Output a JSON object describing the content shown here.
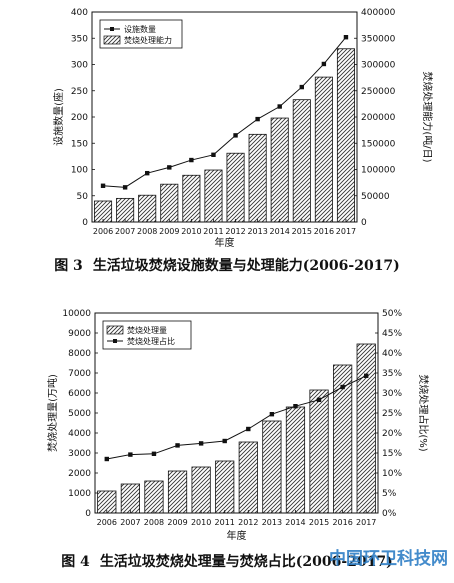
{
  "figures": [
    {
      "caption": {
        "number": "图 3",
        "text": "生活垃圾焚烧设施数量与处理能力(2006-2017)"
      },
      "chart_data": {
        "type": "bar+line",
        "categories": [
          "2006",
          "2007",
          "2008",
          "2009",
          "2010",
          "2011",
          "2012",
          "2013",
          "2014",
          "2015",
          "2016",
          "2017"
        ],
        "xlabel": "年度",
        "ylabel_left": "设施数量(座)",
        "ylabel_right": "焚烧处理能力(吨/日)",
        "ylim_left": [
          0,
          400
        ],
        "ylim_right": [
          0,
          400000
        ],
        "yticks_left": [
          0,
          50,
          100,
          150,
          200,
          250,
          300,
          350,
          400
        ],
        "yticks_right": [
          0,
          50000,
          100000,
          150000,
          200000,
          250000,
          300000,
          350000,
          400000
        ],
        "legend_position": "top-left",
        "series": [
          {
            "name": "设施数量",
            "kind": "line",
            "axis": "left",
            "values": [
              69,
              66,
              93,
              104,
              118,
              128,
              165,
              196,
              220,
              257,
              301,
              352
            ]
          },
          {
            "name": "焚烧处理能力",
            "kind": "bar",
            "axis": "right",
            "values": [
              40000,
              45000,
              51000,
              72000,
              89000,
              99000,
              131000,
              167000,
              198000,
              233000,
              276000,
              330000
            ]
          }
        ]
      }
    },
    {
      "caption": {
        "number": "图 4",
        "text": "生活垃圾焚烧处理量与焚烧占比(2006-2017)"
      },
      "chart_data": {
        "type": "bar+line",
        "categories": [
          "2006",
          "2007",
          "2008",
          "2009",
          "2010",
          "2011",
          "2012",
          "2013",
          "2014",
          "2015",
          "2016",
          "2017"
        ],
        "xlabel": "年度",
        "ylabel_left": "焚烧处理量(万吨)",
        "ylabel_right": "焚烧处理占比(%)",
        "ylim_left": [
          0,
          10000
        ],
        "ylim_right": [
          0,
          50
        ],
        "yticks_left": [
          0,
          1000,
          2000,
          3000,
          4000,
          5000,
          6000,
          7000,
          8000,
          9000,
          10000
        ],
        "yticks_right": [
          "0%",
          "5%",
          "10%",
          "15%",
          "20%",
          "25%",
          "30%",
          "35%",
          "40%",
          "45%",
          "50%"
        ],
        "legend_position": "top-left",
        "series": [
          {
            "name": "焚烧处理量",
            "kind": "bar",
            "axis": "left",
            "values": [
              1100,
              1450,
              1600,
              2100,
              2300,
              2600,
              3550,
              4600,
              5300,
              6150,
              7400,
              8450
            ]
          },
          {
            "name": "焚烧处理占比",
            "kind": "line",
            "axis": "right",
            "values": [
              13.5,
              14.6,
              14.8,
              16.9,
              17.4,
              18.0,
              21.0,
              24.7,
              26.7,
              28.3,
              31.5,
              34.3
            ]
          }
        ]
      }
    }
  ],
  "watermark": "中国环卫科技网",
  "colors": {
    "axis": "#111111",
    "bar_fill": "#ffffff",
    "hatch": "#333333",
    "line": "#111111"
  }
}
